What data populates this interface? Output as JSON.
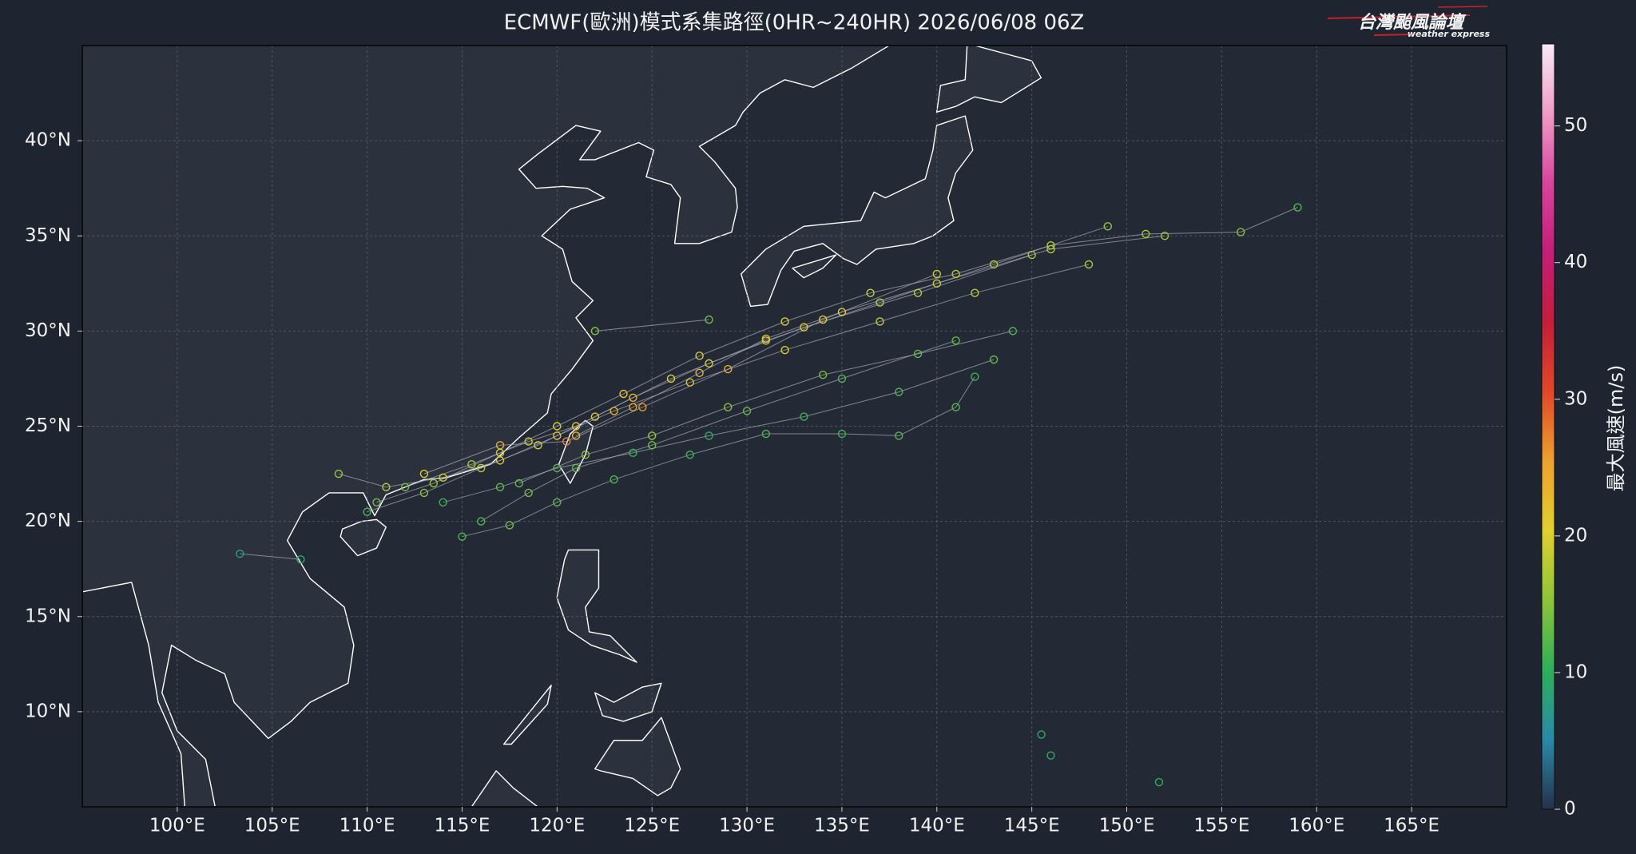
{
  "chart_data": {
    "type": "map-tracks",
    "title": "ECMWF(歐洲)模式系集路徑(0HR~240HR) 2026/06/08 06Z",
    "xlim": [
      95,
      170
    ],
    "ylim": [
      5,
      45
    ],
    "xticks": [
      {
        "value": 100,
        "label": "100°E"
      },
      {
        "value": 105,
        "label": "105°E"
      },
      {
        "value": 110,
        "label": "110°E"
      },
      {
        "value": 115,
        "label": "115°E"
      },
      {
        "value": 120,
        "label": "120°E"
      },
      {
        "value": 125,
        "label": "125°E"
      },
      {
        "value": 130,
        "label": "130°E"
      },
      {
        "value": 135,
        "label": "135°E"
      },
      {
        "value": 140,
        "label": "140°E"
      },
      {
        "value": 145,
        "label": "145°E"
      },
      {
        "value": 150,
        "label": "150°E"
      },
      {
        "value": 155,
        "label": "155°E"
      },
      {
        "value": 160,
        "label": "160°E"
      },
      {
        "value": 165,
        "label": "165°E"
      }
    ],
    "yticks": [
      {
        "value": 10,
        "label": "10°N"
      },
      {
        "value": 15,
        "label": "15°N"
      },
      {
        "value": 20,
        "label": "20°N"
      },
      {
        "value": 25,
        "label": "25°N"
      },
      {
        "value": 30,
        "label": "30°N"
      },
      {
        "value": 35,
        "label": "35°N"
      },
      {
        "value": 40,
        "label": "40°N"
      }
    ],
    "grid": true,
    "track_color": "#a9adb5",
    "tracks": [
      {
        "lon": [
          110,
          113,
          116,
          119,
          122,
          126,
          131,
          137,
          143,
          149
        ],
        "lat": [
          20.5,
          21.5,
          22.8,
          24,
          25.5,
          27.5,
          29.5,
          31.5,
          33.5,
          35.5
        ],
        "wind": [
          12,
          15,
          18,
          20,
          21,
          20,
          19,
          18,
          17,
          16
        ]
      },
      {
        "lon": [
          112,
          115.5,
          118.5,
          121,
          124,
          128,
          133,
          139,
          145
        ],
        "lat": [
          21.8,
          23,
          24.2,
          25,
          26.5,
          28.3,
          30.2,
          32,
          34
        ],
        "wind": [
          14,
          17,
          19,
          22,
          23,
          21,
          20,
          18,
          17
        ]
      },
      {
        "lon": [
          108.5,
          111,
          114,
          117,
          120,
          123,
          127,
          132,
          137,
          142,
          148
        ],
        "lat": [
          22.5,
          21.8,
          22.3,
          23.2,
          24.5,
          25.8,
          27.3,
          29,
          30.5,
          32,
          33.5
        ],
        "wind": [
          16,
          18,
          20,
          21,
          22,
          24,
          22,
          20,
          19,
          18,
          17
        ]
      },
      {
        "lon": [
          114,
          117,
          120,
          124,
          128,
          133,
          138,
          143
        ],
        "lat": [
          21,
          21.8,
          22.8,
          23.6,
          24.5,
          25.5,
          26.8,
          28.5
        ],
        "wind": [
          11,
          13,
          12,
          11,
          10,
          11,
          12,
          13
        ]
      },
      {
        "lon": [
          116,
          118.5,
          121,
          125,
          130,
          135,
          141
        ],
        "lat": [
          20,
          21.5,
          22.8,
          24,
          25.8,
          27.5,
          29.5
        ],
        "wind": [
          12,
          14,
          13,
          14,
          13,
          12,
          13
        ]
      },
      {
        "lon": [
          121,
          124,
          127.5,
          131,
          135,
          140,
          146,
          152
        ],
        "lat": [
          24.5,
          26,
          27.8,
          29.6,
          31,
          32.5,
          34.3,
          35
        ],
        "wind": [
          23,
          25,
          23,
          22,
          21,
          19,
          18,
          16
        ]
      },
      {
        "lon": [
          113,
          117,
          120.5,
          124.5,
          129,
          134,
          140
        ],
        "lat": [
          22.5,
          24,
          24.2,
          26,
          28,
          30.6,
          33
        ],
        "wind": [
          20,
          24,
          27,
          26,
          24,
          21,
          19
        ]
      },
      {
        "lon": [
          103.3,
          106.5
        ],
        "lat": [
          18.3,
          18
        ],
        "wind": [
          8,
          9
        ]
      },
      {
        "lon": [
          118,
          121.5,
          125,
          129,
          134,
          139,
          144
        ],
        "lat": [
          22,
          23.5,
          24.5,
          26,
          27.7,
          28.8,
          30
        ],
        "wind": [
          13,
          15,
          16,
          15,
          14,
          13,
          12
        ]
      },
      {
        "lon": [
          110.5,
          113.5,
          117,
          120,
          123.5,
          127.5,
          132,
          136.5,
          141,
          146,
          151,
          156,
          159
        ],
        "lat": [
          21,
          22,
          23.6,
          25,
          26.7,
          28.7,
          30.5,
          32,
          33,
          34.5,
          35.1,
          35.2,
          36.5
        ],
        "wind": [
          14,
          16,
          19,
          20,
          21,
          21,
          20,
          19,
          18,
          18,
          17,
          15,
          12
        ]
      },
      {
        "lon": [
          115,
          117.5,
          120,
          123,
          127,
          131,
          135,
          138,
          141,
          142
        ],
        "lat": [
          19.2,
          19.8,
          21,
          22.2,
          23.5,
          24.6,
          24.6,
          24.5,
          26,
          27.6
        ],
        "wind": [
          12,
          14,
          13,
          12,
          11,
          12,
          11,
          12,
          12,
          11
        ]
      },
      {
        "lon": [
          122,
          128
        ],
        "lat": [
          30,
          30.6
        ],
        "wind": [
          15,
          14
        ]
      },
      {
        "lon": [
          145.5
        ],
        "lat": [
          8.8
        ],
        "wind": [
          9
        ]
      },
      {
        "lon": [
          146
        ],
        "lat": [
          7.7
        ],
        "wind": [
          10
        ]
      },
      {
        "lon": [
          151.7
        ],
        "lat": [
          6.3
        ],
        "wind": [
          10
        ]
      }
    ],
    "colorbar": {
      "label": "最大風速(m/s)",
      "clim": [
        0,
        56
      ],
      "ticks": [
        0,
        10,
        20,
        30,
        40,
        50
      ],
      "colors": [
        "#26304a",
        "#2a8aa8",
        "#2fae5a",
        "#8cc43a",
        "#e0d030",
        "#eea030",
        "#e04828",
        "#c41e3a",
        "#c41e78",
        "#d8449c",
        "#ee9cc8",
        "#f8eaf4"
      ]
    }
  },
  "logo": {
    "title": "台灣颱風論壇",
    "subtitle": "weather express"
  }
}
